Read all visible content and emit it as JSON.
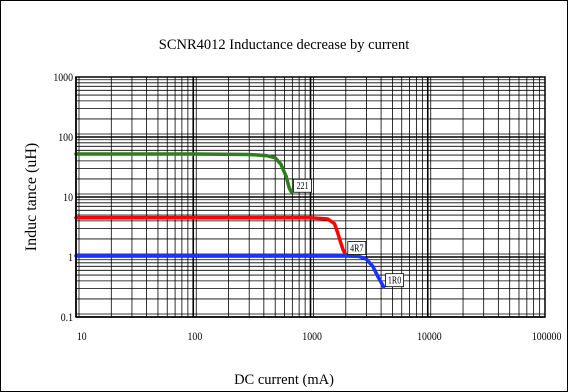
{
  "chart_data": {
    "type": "line",
    "title": "SCNR4012 Inductance decrease by current",
    "xlabel": "DC current (mA)",
    "ylabel": "Induc tance (uH)",
    "xscale": "log",
    "yscale": "log",
    "xlim": [
      10,
      100000
    ],
    "ylim": [
      0.1,
      1000
    ],
    "grid": true,
    "x_ticks": [
      {
        "value": 10,
        "label": "10"
      },
      {
        "value": 100,
        "label": "100"
      },
      {
        "value": 1000,
        "label": "1000"
      },
      {
        "value": 10000,
        "label": "10000"
      },
      {
        "value": 100000,
        "label": "100000"
      }
    ],
    "y_ticks": [
      {
        "value": 0.1,
        "label": "0.1"
      },
      {
        "value": 1,
        "label": "1"
      },
      {
        "value": 10,
        "label": "10"
      },
      {
        "value": 100,
        "label": "100"
      },
      {
        "value": 1000,
        "label": "1000"
      }
    ],
    "series": [
      {
        "label": "221",
        "color": "#2e7d1e",
        "x": [
          10,
          100,
          300,
          420,
          500,
          560,
          620,
          660,
          690
        ],
        "y": [
          52,
          52,
          51,
          49,
          45,
          35,
          22,
          14,
          12
        ]
      },
      {
        "label": "4R7",
        "color": "#ff0000",
        "x": [
          10,
          100,
          1000,
          1400,
          1600,
          1700,
          1800,
          1900,
          2000
        ],
        "y": [
          4.5,
          4.5,
          4.5,
          4.3,
          3.6,
          2.6,
          1.8,
          1.3,
          1.1
        ]
      },
      {
        "label": "1R0",
        "color": "#1a33ff",
        "x": [
          10,
          100,
          1000,
          2000,
          2600,
          3000,
          3400,
          3800,
          4200
        ],
        "y": [
          1.05,
          1.05,
          1.05,
          1.05,
          1.02,
          0.92,
          0.7,
          0.45,
          0.32
        ]
      }
    ]
  }
}
